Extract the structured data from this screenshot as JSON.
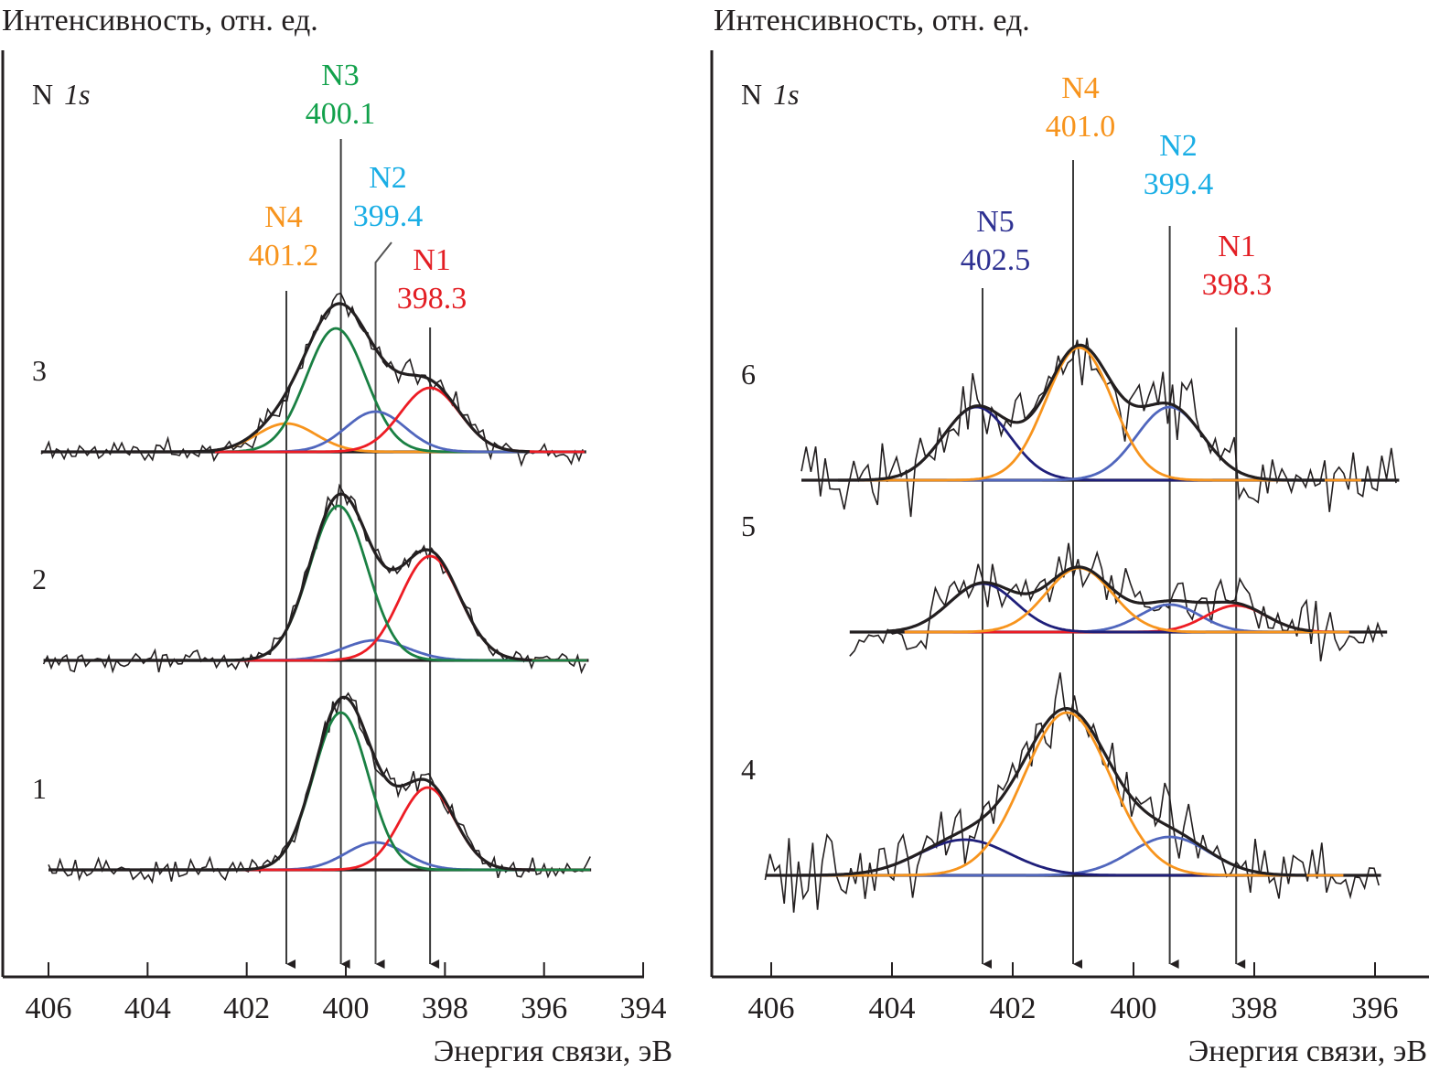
{
  "chart_data": [
    {
      "type": "line",
      "panel": "left",
      "ylabel": "Интенсивность, отн. ед.",
      "xlabel": "Энергия связи, эВ",
      "xlim": [
        406,
        394
      ],
      "x_ticks": [
        "406",
        "404",
        "402",
        "400",
        "398",
        "396",
        "394"
      ],
      "x_tick_values": [
        406,
        404,
        402,
        400,
        398,
        396,
        394
      ],
      "spectrum_label": "N 1s",
      "spectrum_element": "N",
      "spectrum_orbital": "1s",
      "peak_markers": [
        {
          "name": "N4",
          "energy": 401.2,
          "energy_label": "401.2",
          "color": "#f7941d"
        },
        {
          "name": "N3",
          "energy": 400.1,
          "energy_label": "400.1",
          "color": "#12a14b"
        },
        {
          "name": "N2",
          "energy": 399.4,
          "energy_label": "399.4",
          "color": "#1aaee5"
        },
        {
          "name": "N1",
          "energy": 398.3,
          "energy_label": "398.3",
          "color": "#e31e24"
        }
      ],
      "series": [
        {
          "name": "3",
          "x_range": [
            406.15,
            395.15
          ],
          "noise": 9,
          "components": [
            {
              "peak": "N4",
              "center": 401.2,
              "amplitude": 31,
              "sigma": 0.6,
              "color": "#f7941d"
            },
            {
              "peak": "N3",
              "center": 400.2,
              "amplitude": 135,
              "sigma": 0.6,
              "color": "#1a8043"
            },
            {
              "peak": "N2",
              "center": 399.4,
              "amplitude": 44,
              "sigma": 0.6,
              "color": "#5066bd"
            },
            {
              "peak": "N1",
              "center": 398.3,
              "amplitude": 70,
              "sigma": 0.6,
              "color": "#ed1c24"
            }
          ]
        },
        {
          "name": "2",
          "x_range": [
            406.1,
            395.1
          ],
          "noise": 8,
          "components": [
            {
              "peak": "N2",
              "center": 399.4,
              "amplitude": 22,
              "sigma": 0.65,
              "color": "#5066bd"
            },
            {
              "peak": "N1",
              "center": 398.3,
              "amplitude": 114,
              "sigma": 0.6,
              "color": "#ed1c24"
            },
            {
              "peak": "N3",
              "center": 400.15,
              "amplitude": 169,
              "sigma": 0.58,
              "color": "#1a8043"
            }
          ]
        },
        {
          "name": "1",
          "x_range": [
            406.0,
            395.05
          ],
          "noise": 9,
          "components": [
            {
              "peak": "N2",
              "center": 399.4,
              "amplitude": 30,
              "sigma": 0.6,
              "color": "#5066bd"
            },
            {
              "peak": "N1",
              "center": 398.35,
              "amplitude": 90,
              "sigma": 0.55,
              "color": "#ed1c24"
            },
            {
              "peak": "N3",
              "center": 400.1,
              "amplitude": 172,
              "sigma": 0.55,
              "color": "#1a8043"
            }
          ]
        }
      ]
    },
    {
      "type": "line",
      "panel": "right",
      "ylabel": "Интенсивность, отн. ед.",
      "xlabel": "Энергия связи, эВ",
      "xlim": [
        406.1,
        394.9
      ],
      "x_ticks": [
        "406",
        "404",
        "402",
        "400",
        "398",
        "396"
      ],
      "x_tick_values": [
        406,
        404,
        402,
        400,
        398,
        396
      ],
      "spectrum_label": "N 1s",
      "spectrum_element": "N",
      "spectrum_orbital": "1s",
      "peak_markers": [
        {
          "name": "N5",
          "energy": 402.5,
          "energy_label": "402.5",
          "color": "#2e3192"
        },
        {
          "name": "N4",
          "energy": 401.0,
          "energy_label": "401.0",
          "color": "#f7941d"
        },
        {
          "name": "N2",
          "energy": 399.4,
          "energy_label": "399.4",
          "color": "#1aaee5"
        },
        {
          "name": "N1",
          "energy": 398.3,
          "energy_label": "398.3",
          "color": "#e31e24"
        }
      ],
      "series": [
        {
          "name": "6",
          "x_range": [
            405.5,
            395.6
          ],
          "noise": 28,
          "components": [
            {
              "peak": "N5",
              "center": 402.6,
              "amplitude": 80,
              "sigma": 0.55,
              "color": "#1f1f7a"
            },
            {
              "peak": "N2",
              "center": 399.4,
              "amplitude": 80,
              "sigma": 0.55,
              "color": "#5066bd"
            },
            {
              "peak": "N4",
              "center": 400.9,
              "amplitude": 145,
              "sigma": 0.55,
              "color": "#f7941d"
            }
          ]
        },
        {
          "name": "5",
          "x_range": [
            404.7,
            395.8
          ],
          "noise": 20,
          "components": [
            {
              "peak": "N2",
              "center": 399.4,
              "amplitude": 30,
              "sigma": 0.5,
              "color": "#5066bd"
            },
            {
              "peak": "N1",
              "center": 398.3,
              "amplitude": 29,
              "sigma": 0.5,
              "color": "#ed1c24"
            },
            {
              "peak": "N5",
              "center": 402.5,
              "amplitude": 53,
              "sigma": 0.55,
              "color": "#1f1f7a"
            },
            {
              "peak": "N4",
              "center": 400.9,
              "amplitude": 70,
              "sigma": 0.55,
              "color": "#f7941d"
            }
          ]
        },
        {
          "name": "4",
          "x_range": [
            406.1,
            395.9
          ],
          "noise": 28,
          "components": [
            {
              "peak": "N2",
              "center": 399.4,
              "amplitude": 42,
              "sigma": 0.65,
              "color": "#5066bd"
            },
            {
              "peak": "N5",
              "center": 402.8,
              "amplitude": 39,
              "sigma": 0.75,
              "color": "#1f1f7a"
            },
            {
              "peak": "N4",
              "center": 401.1,
              "amplitude": 178,
              "sigma": 0.72,
              "color": "#f7941d"
            }
          ]
        }
      ]
    }
  ]
}
